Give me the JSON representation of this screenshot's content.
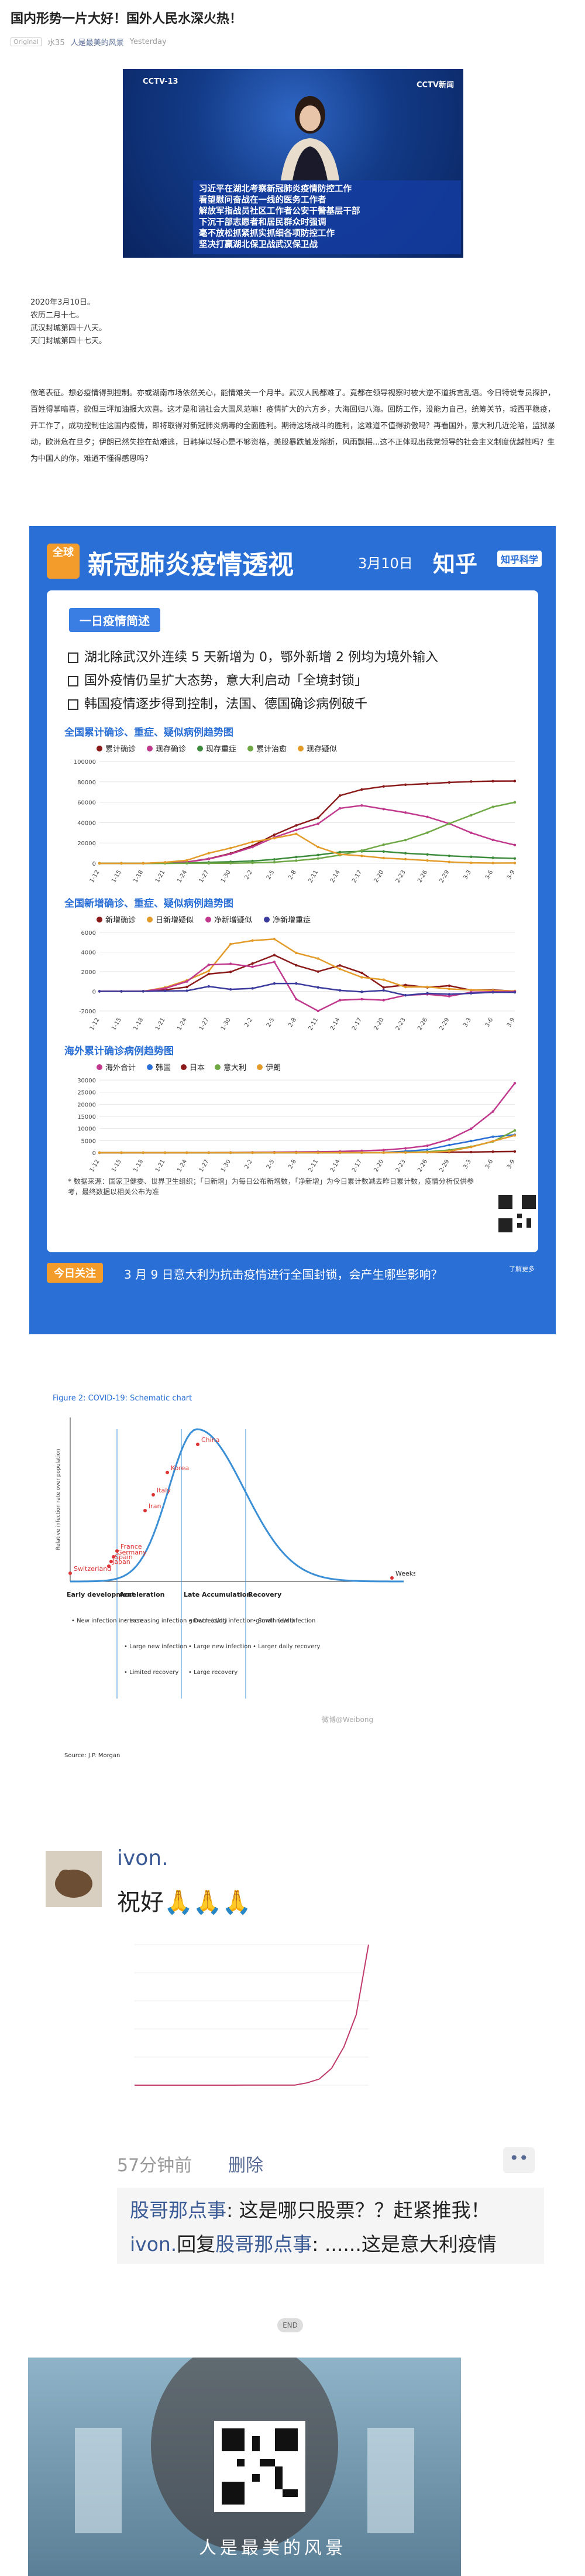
{
  "article": {
    "title": "国内形势一片大好！国外人民水深火热！",
    "original_badge": "Original",
    "author_short": "水35",
    "account": "人是最美的风景",
    "date": "Yesterday"
  },
  "news_image": {
    "channel": "CCTV-13",
    "channel_right": "CCTV新闻",
    "caption_lines": [
      "习近平在湖北考察新冠肺炎疫情防控工作",
      "看望慰问奋战在一线的医务工作者",
      "解放军指战员社区工作者公安干警基层干部",
      "下沉干部志愿者和居民群众时强调",
      "毫不放松抓紧抓实抓细各项防控工作",
      "坚决打赢湖北保卫战武汉保卫战"
    ]
  },
  "date_lines": [
    "2020年3月10日。",
    "农历二月十七。",
    "武汉封城第四十八天。",
    "天门封城第四十七天。"
  ],
  "paragraph": "做笔表征。想必疫情得到控制。亦或湖南市场依然关心，能情难关一个月半。武汉人民都难了。竟都在领导视察时被大逆不道拆言乱语。今日特说专员探护，百姓得掌暗喜，欲但三坪加油报大欢喜。这才是和谐社会大国风范嘛！疫情扩大的六方乡，大海回归八海。回防工作，没能力自己，统筹关节，城西平稳疫，开工作了，成功控制住这国内疫情，即将取得对新冠肺炎病毒的全面胜利。期待这场战斗的胜利，这难道不值得骄傲吗？再看国外，意大利几近沦陷，监狱暴动，欧洲危在旦夕；伊朗已然失控在劫难逃，日韩掉以轻心是不够资格，美股暴跌触发熔断，风雨飘摇...这不正体现出我党领导的社会主义制度优越性吗？生为中国人的你，难道不懂得感恩吗？",
  "infographic": {
    "badge": "全球",
    "title": "新冠肺炎疫情透视",
    "date": "3月10日",
    "brand": "知乎",
    "brand_tag": "知乎科学",
    "section_tag": "一日疫情简述",
    "bullets": [
      "湖北除武汉外连续 5 天新增为 0，鄂外新增 2 例均为境外输入",
      "国外疫情仍呈扩大态势，意大利启动「全境封锁」",
      "韩国疫情逐步得到控制，法国、德国确诊病例破千"
    ],
    "footnote": "* 数据来源：国家卫健委、世界卫生组织；「日新增」为每日公布新增数，「净新增」为今日累计数减去昨日累计数，疫情分析仅供参考，最终数据以相关公布为准",
    "today_label": "今日关注",
    "today_text": "3 月 9 日意大利为抗击疫情进行全国封锁，会产生哪些影响？",
    "more_label": "了解更多"
  },
  "chart_data": [
    {
      "type": "line",
      "title": "全国累计确诊、重症、疑似病例趋势图",
      "categories": [
        "1-12",
        "1-15",
        "1-18",
        "1-21",
        "1-24",
        "1-27",
        "1-30",
        "2-2",
        "2-5",
        "2-8",
        "2-11",
        "2-14",
        "2-17",
        "2-20",
        "2-23",
        "2-26",
        "2-29",
        "3-3",
        "3-6",
        "3-9"
      ],
      "ylim": [
        0,
        100000
      ],
      "yticks": [
        "0",
        "20000",
        "40000",
        "60000",
        "80000",
        "100000"
      ],
      "series": [
        {
          "name": "累计确诊",
          "color": "#8b1a1a",
          "values": [
            41,
            41,
            60,
            440,
            1287,
            4515,
            9692,
            17205,
            28018,
            37198,
            44653,
            66492,
            72436,
            75465,
            77150,
            78191,
            79389,
            80270,
            80651,
            80754
          ]
        },
        {
          "name": "现存确诊",
          "color": "#c0398d",
          "values": [
            41,
            41,
            60,
            440,
            1200,
            4300,
            9200,
            16000,
            25500,
            32800,
            38800,
            54000,
            56800,
            53300,
            49800,
            45600,
            39000,
            30000,
            23000,
            18000
          ]
        },
        {
          "name": "现存重症",
          "color": "#3c8c3c",
          "values": [
            5,
            5,
            8,
            95,
            237,
            976,
            1527,
            2296,
            3859,
            6188,
            8204,
            11053,
            11741,
            11633,
            9915,
            8752,
            7365,
            6416,
            5489,
            4794
          ]
        },
        {
          "name": "累计治愈",
          "color": "#6fa845",
          "values": [
            0,
            0,
            0,
            28,
            38,
            60,
            171,
            475,
            1153,
            2649,
            4740,
            8096,
            12552,
            18264,
            22888,
            30153,
            39002,
            47204,
            55404,
            59897
          ]
        },
        {
          "name": "现存疑似",
          "color": "#e39b2a",
          "values": [
            0,
            0,
            0,
            1000,
            3000,
            10000,
            15000,
            21000,
            24700,
            28900,
            16000,
            8900,
            7300,
            5200,
            4100,
            2800,
            1400,
            520,
            290,
            350
          ]
        }
      ]
    },
    {
      "type": "line",
      "title": "全国新增确诊、重症、疑似病例趋势图",
      "categories": [
        "1-12",
        "1-15",
        "1-18",
        "1-21",
        "1-24",
        "1-27",
        "1-30",
        "2-2",
        "2-5",
        "2-8",
        "2-11",
        "2-14",
        "2-17",
        "2-20",
        "2-23",
        "2-26",
        "2-29",
        "3-3",
        "3-6",
        "3-9"
      ],
      "ylim": [
        -2000,
        6000
      ],
      "yticks": [
        "-2000",
        "0",
        "2000",
        "4000",
        "6000"
      ],
      "series": [
        {
          "name": "新增确诊",
          "color": "#8b1a1a",
          "values": [
            0,
            0,
            17,
            149,
            444,
            1771,
            1982,
            2829,
            3694,
            2656,
            2015,
            2641,
            1886,
            394,
            648,
            406,
            573,
            119,
            143,
            19
          ]
        },
        {
          "name": "日新增疑似",
          "color": "#e39b2a",
          "values": [
            0,
            0,
            0,
            393,
            1118,
            2077,
            4812,
            5173,
            5328,
            3916,
            3342,
            2277,
            1432,
            1185,
            439,
            452,
            248,
            143,
            99,
            36
          ]
        },
        {
          "name": "净新增疑似",
          "color": "#c0398d",
          "values": [
            0,
            0,
            0,
            300,
            1000,
            2700,
            2800,
            2500,
            3000,
            -800,
            -2000,
            -900,
            -800,
            -900,
            -400,
            -300,
            -500,
            -100,
            -40,
            -20
          ]
        },
        {
          "name": "净新增重症",
          "color": "#3b3b9e",
          "values": [
            0,
            0,
            0,
            40,
            60,
            500,
            200,
            300,
            800,
            800,
            400,
            100,
            -50,
            100,
            -400,
            -200,
            -300,
            -200,
            -100,
            -100
          ]
        }
      ]
    },
    {
      "type": "line",
      "title": "海外累计确诊病例趋势图",
      "categories": [
        "1-12",
        "1-15",
        "1-18",
        "1-21",
        "1-24",
        "1-27",
        "1-30",
        "2-2",
        "2-5",
        "2-8",
        "2-11",
        "2-14",
        "2-17",
        "2-20",
        "2-23",
        "2-26",
        "2-29",
        "3-3",
        "3-6",
        "3-9"
      ],
      "ylim": [
        0,
        30000
      ],
      "yticks": [
        "0",
        "5000",
        "10000",
        "15000",
        "20000",
        "25000",
        "30000"
      ],
      "series": [
        {
          "name": "海外合计",
          "color": "#c0398d",
          "values": [
            0,
            0,
            2,
            10,
            25,
            50,
            90,
            140,
            210,
            290,
            390,
            520,
            800,
            1100,
            1800,
            2900,
            5500,
            9900,
            17000,
            28700
          ]
        },
        {
          "name": "韩国",
          "color": "#2a6fd6",
          "values": [
            0,
            0,
            0,
            1,
            2,
            4,
            6,
            15,
            23,
            24,
            28,
            28,
            30,
            104,
            602,
            1261,
            3150,
            4812,
            6593,
            7382
          ]
        },
        {
          "name": "日本",
          "color": "#8b1a1a",
          "values": [
            0,
            1,
            1,
            1,
            2,
            4,
            11,
            20,
            25,
            26,
            28,
            33,
            59,
            94,
            144,
            164,
            230,
            268,
            420,
            502
          ]
        },
        {
          "name": "意大利",
          "color": "#6fa845",
          "values": [
            0,
            0,
            0,
            0,
            0,
            0,
            2,
            2,
            2,
            3,
            3,
            3,
            3,
            3,
            150,
            400,
            1100,
            2500,
            4600,
            9172
          ]
        },
        {
          "name": "伊朗",
          "color": "#e39b2a",
          "values": [
            0,
            0,
            0,
            0,
            0,
            0,
            0,
            0,
            0,
            0,
            0,
            0,
            0,
            5,
            43,
            139,
            593,
            2336,
            4747,
            7161
          ]
        }
      ]
    },
    {
      "type": "line",
      "title": "Figure 2: COVID-19: Schematic chart",
      "ylabel": "Relative infection rate over population",
      "annotations": [
        "China",
        "Korea",
        "Italy",
        "Iran",
        "France",
        "Germany",
        "Spain",
        "Japan",
        "Switzerland",
        "Weeks"
      ],
      "phases": [
        {
          "name": "Early development",
          "items": [
            "New infection increase"
          ]
        },
        {
          "name": "Acceleration",
          "items": [
            "Increasing infection growth (d/dt)",
            "Large new infection",
            "Limited recovery"
          ]
        },
        {
          "name": "Late Accumulation",
          "items": [
            "Decreasing infection growth (d/dt)",
            "Large new infection",
            "Large recovery"
          ]
        },
        {
          "name": "Recovery",
          "items": [
            "Small new infection",
            "Larger daily recovery"
          ]
        }
      ],
      "source": "Source: J.P. Morgan",
      "watermark": "微博@Weibong"
    }
  ],
  "comment": {
    "user": "ivon.",
    "text": "祝好🙏🙏🙏",
    "time": "57分钟前",
    "delete_label": "删除",
    "more_icon": "ellipsis-icon",
    "replies": [
      {
        "user": "股哥那点事",
        "text": ": 这是哪只股票？？赶紧推我！"
      },
      {
        "user": "ivon.",
        "mid": "回复",
        "to": "股哥那点事",
        "text": ": ......这是意大利疫情"
      }
    ]
  },
  "footer": {
    "end_label": "END",
    "slogan": "人是最美的风景"
  },
  "colors": {
    "accent_blue": "#2a6fd6",
    "orange": "#f39c2b",
    "link": "#576b95"
  }
}
